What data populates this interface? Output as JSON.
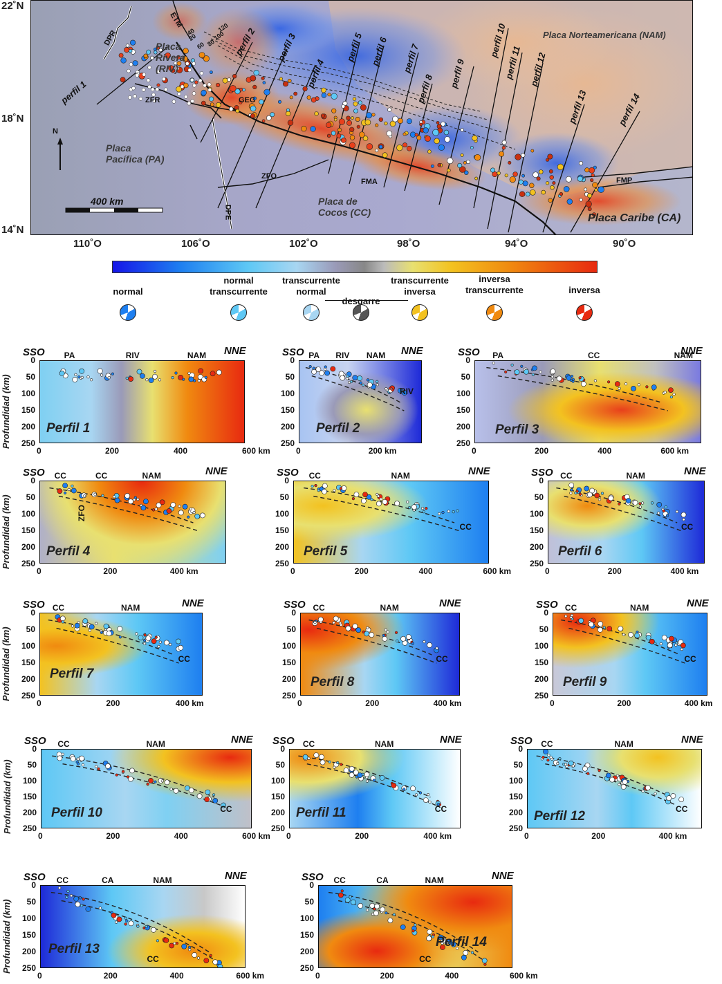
{
  "map": {
    "latitudes": [
      "22˚N",
      "18˚N",
      "14˚N"
    ],
    "longitudes": [
      "110˚O",
      "106˚O",
      "102˚O",
      "98˚O",
      "94˚O",
      "90˚O"
    ],
    "scale_label": "400 km",
    "north_label": "N",
    "plates": {
      "nam": "Placa Norteamericana (NAM)",
      "rivera": [
        "Placa",
        "Rivera",
        "(RIV)"
      ],
      "pacifica": [
        "Placa",
        "Pacífica (PA)"
      ],
      "cocos": [
        "Placa de",
        "Cocos (CC)"
      ],
      "caribe": "Placa Caribe (CA)"
    },
    "features": [
      "DPR",
      "ETM",
      "ZFR",
      "GEG",
      "ZFO",
      "DPE",
      "FMA",
      "FMP"
    ],
    "depth_contours": [
      "20",
      "40",
      "60",
      "80",
      "100",
      "120"
    ],
    "profiles": [
      "perfil 1",
      "perfil 2",
      "perfil 3",
      "perfil 4",
      "perfil 5",
      "perfil 6",
      "perfil 7",
      "perfil 8",
      "perfil 9",
      "perfil 10",
      "perfil 11",
      "perfil 12",
      "perfil 13",
      "perfil 14"
    ]
  },
  "legend": {
    "colors": [
      "#1515e8",
      "#5ec8f5",
      "#888888",
      "#f3c220",
      "#e82a10"
    ],
    "types": [
      {
        "label": "normal",
        "color": "#1e7ff0"
      },
      {
        "label": "normal\ntranscurrente",
        "color": "#5ec8f5"
      },
      {
        "label": "transcurrente\nnormal",
        "color": "#a8d6f2"
      },
      {
        "label": "desgarre",
        "color": "#555555"
      },
      {
        "label": "transcurrente\ninversa",
        "color": "#f3c220"
      },
      {
        "label": "inversa\ntranscurrente",
        "color": "#f08a10"
      },
      {
        "label": "inversa",
        "color": "#e82a10"
      }
    ]
  },
  "sections": {
    "ylabel": "Profundidad (km)",
    "left_dir": "SSO",
    "right_dir": "NNE",
    "depth_ticks": [
      "0",
      "50",
      "100",
      "150",
      "200",
      "250"
    ],
    "panels": [
      {
        "title": "Perfil 1",
        "plates": [
          "PA",
          "RIV",
          "NAM"
        ],
        "xticks": [
          "0",
          "200",
          "400",
          "600 km"
        ]
      },
      {
        "title": "Perfil 2",
        "plates": [
          "PA",
          "RIV",
          "NAM",
          "RIV"
        ],
        "xticks": [
          "0",
          "200 km"
        ]
      },
      {
        "title": "Perfil 3",
        "plates": [
          "PA",
          "CC",
          "NAM"
        ],
        "xticks": [
          "0",
          "200",
          "400",
          "600 km"
        ]
      },
      {
        "title": "Perfil 4",
        "plates": [
          "CC",
          "CC",
          "NAM",
          "ZFO"
        ],
        "xticks": [
          "0",
          "200",
          "400 km"
        ]
      },
      {
        "title": "Perfil 5",
        "plates": [
          "CC",
          "NAM",
          "CC"
        ],
        "xticks": [
          "0",
          "200",
          "400",
          "600 km"
        ]
      },
      {
        "title": "Perfil 6",
        "plates": [
          "CC",
          "NAM",
          "CC"
        ],
        "xticks": [
          "0",
          "200",
          "400 km"
        ]
      },
      {
        "title": "Perfil 7",
        "plates": [
          "CC",
          "NAM",
          "CC"
        ],
        "xticks": [
          "0",
          "200",
          "400 km"
        ]
      },
      {
        "title": "Perfil 8",
        "plates": [
          "CC",
          "NAM",
          "CC"
        ],
        "xticks": [
          "0",
          "200",
          "400 km"
        ]
      },
      {
        "title": "Perfil 9",
        "plates": [
          "CC",
          "NAM",
          "CC"
        ],
        "xticks": [
          "0",
          "200",
          "400 km"
        ]
      },
      {
        "title": "Perfil 10",
        "plates": [
          "CC",
          "NAM",
          "CC"
        ],
        "xticks": [
          "0",
          "200",
          "400",
          "600 km"
        ]
      },
      {
        "title": "Perfil 11",
        "plates": [
          "CC",
          "NAM",
          "CC"
        ],
        "xticks": [
          "0",
          "200",
          "400 km"
        ]
      },
      {
        "title": "Perfil 12",
        "plates": [
          "CC",
          "NAM",
          "CC"
        ],
        "xticks": [
          "0",
          "200",
          "400 km"
        ]
      },
      {
        "title": "Perfil 13",
        "plates": [
          "CC",
          "CA",
          "NAM",
          "CC"
        ],
        "xticks": [
          "0",
          "200",
          "400",
          "600 km"
        ]
      },
      {
        "title": "Perfil 14",
        "plates": [
          "CC",
          "CA",
          "NAM",
          "CC"
        ],
        "xticks": [
          "0",
          "200",
          "400",
          "600 km"
        ]
      }
    ]
  }
}
